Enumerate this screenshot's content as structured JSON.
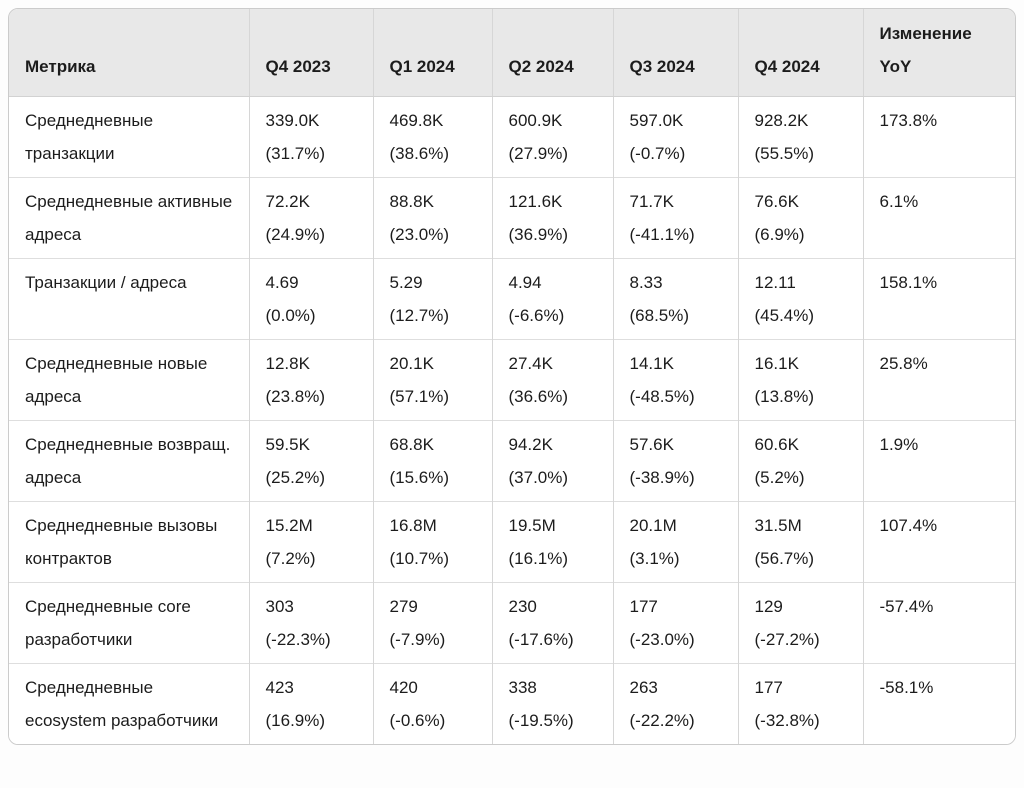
{
  "colors": {
    "header_bg": "#e8e8e8",
    "card_border": "#cbcbcb",
    "grid_line": "#dedede",
    "text": "#1c1c1c"
  },
  "table": {
    "headers": [
      "Метрика",
      "Q4 2023",
      "Q1 2024",
      "Q2 2024",
      "Q3 2024",
      "Q4 2024",
      "Изменение YoY"
    ],
    "rows": [
      {
        "metric": "Среднедневные транзакции",
        "q": [
          {
            "value": "339.0K",
            "pct": "(31.7%)"
          },
          {
            "value": "469.8K",
            "pct": "(38.6%)"
          },
          {
            "value": "600.9K",
            "pct": "(27.9%)"
          },
          {
            "value": "597.0K",
            "pct": "(-0.7%)"
          },
          {
            "value": "928.2K",
            "pct": "(55.5%)"
          }
        ],
        "yoy": "173.8%"
      },
      {
        "metric": "Среднедневные активные адреса",
        "q": [
          {
            "value": "72.2K",
            "pct": "(24.9%)"
          },
          {
            "value": "88.8K",
            "pct": "(23.0%)"
          },
          {
            "value": "121.6K",
            "pct": "(36.9%)"
          },
          {
            "value": "71.7K",
            "pct": "(-41.1%)"
          },
          {
            "value": "76.6K",
            "pct": "(6.9%)"
          }
        ],
        "yoy": "6.1%"
      },
      {
        "metric": "Транзакции / адреса",
        "q": [
          {
            "value": "4.69",
            "pct": "(0.0%)"
          },
          {
            "value": "5.29",
            "pct": "(12.7%)"
          },
          {
            "value": "4.94",
            "pct": "(-6.6%)"
          },
          {
            "value": "8.33",
            "pct": "(68.5%)"
          },
          {
            "value": "12.11",
            "pct": "(45.4%)"
          }
        ],
        "yoy": "158.1%"
      },
      {
        "metric": "Среднедневные новые адреса",
        "q": [
          {
            "value": "12.8K",
            "pct": "(23.8%)"
          },
          {
            "value": "20.1K",
            "pct": "(57.1%)"
          },
          {
            "value": "27.4K",
            "pct": "(36.6%)"
          },
          {
            "value": "14.1K",
            "pct": "(-48.5%)"
          },
          {
            "value": "16.1K",
            "pct": "(13.8%)"
          }
        ],
        "yoy": "25.8%"
      },
      {
        "metric": "Среднедневные возвращ. адреса",
        "q": [
          {
            "value": "59.5K",
            "pct": "(25.2%)"
          },
          {
            "value": "68.8K",
            "pct": "(15.6%)"
          },
          {
            "value": "94.2K",
            "pct": "(37.0%)"
          },
          {
            "value": "57.6K",
            "pct": "(-38.9%)"
          },
          {
            "value": "60.6K",
            "pct": "(5.2%)"
          }
        ],
        "yoy": "1.9%"
      },
      {
        "metric": "Среднедневные вызовы контрактов",
        "q": [
          {
            "value": "15.2M",
            "pct": "(7.2%)"
          },
          {
            "value": "16.8M",
            "pct": "(10.7%)"
          },
          {
            "value": "19.5M",
            "pct": "(16.1%)"
          },
          {
            "value": "20.1M",
            "pct": "(3.1%)"
          },
          {
            "value": "31.5M",
            "pct": "(56.7%)"
          }
        ],
        "yoy": "107.4%"
      },
      {
        "metric": "Среднедневные core разработчики",
        "q": [
          {
            "value": "303",
            "pct": "(-22.3%)"
          },
          {
            "value": "279",
            "pct": "(-7.9%)"
          },
          {
            "value": "230",
            "pct": "(-17.6%)"
          },
          {
            "value": "177",
            "pct": "(-23.0%)"
          },
          {
            "value": "129",
            "pct": "(-27.2%)"
          }
        ],
        "yoy": "-57.4%"
      },
      {
        "metric": "Среднедневные ecosystem разработчики",
        "q": [
          {
            "value": "423",
            "pct": "(16.9%)"
          },
          {
            "value": "420",
            "pct": "(-0.6%)"
          },
          {
            "value": "338",
            "pct": "(-19.5%)"
          },
          {
            "value": "263",
            "pct": "(-22.2%)"
          },
          {
            "value": "177",
            "pct": "(-32.8%)"
          }
        ],
        "yoy": "-58.1%"
      }
    ]
  },
  "chart_data": {
    "type": "table",
    "title": "",
    "columns": [
      "Метрика",
      "Q4 2023",
      "Q1 2024",
      "Q2 2024",
      "Q3 2024",
      "Q4 2024",
      "Изменение YoY"
    ],
    "rows": [
      [
        "Среднедневные транзакции",
        "339.0K (31.7%)",
        "469.8K (38.6%)",
        "600.9K (27.9%)",
        "597.0K (-0.7%)",
        "928.2K (55.5%)",
        "173.8%"
      ],
      [
        "Среднедневные активные адреса",
        "72.2K (24.9%)",
        "88.8K (23.0%)",
        "121.6K (36.9%)",
        "71.7K (-41.1%)",
        "76.6K (6.9%)",
        "6.1%"
      ],
      [
        "Транзакции / адреса",
        "4.69 (0.0%)",
        "5.29 (12.7%)",
        "4.94 (-6.6%)",
        "8.33 (68.5%)",
        "12.11 (45.4%)",
        "158.1%"
      ],
      [
        "Среднедневные новые адреса",
        "12.8K (23.8%)",
        "20.1K (57.1%)",
        "27.4K (36.6%)",
        "14.1K (-48.5%)",
        "16.1K (13.8%)",
        "25.8%"
      ],
      [
        "Среднедневные возвращ. адреса",
        "59.5K (25.2%)",
        "68.8K (15.6%)",
        "94.2K (37.0%)",
        "57.6K (-38.9%)",
        "60.6K (5.2%)",
        "1.9%"
      ],
      [
        "Среднедневные вызовы контрактов",
        "15.2M (7.2%)",
        "16.8M (10.7%)",
        "19.5M (16.1%)",
        "20.1M (3.1%)",
        "31.5M (56.7%)",
        "107.4%"
      ],
      [
        "Среднедневные core разработчики",
        "303 (-22.3%)",
        "279 (-7.9%)",
        "230 (-17.6%)",
        "177 (-23.0%)",
        "129 (-27.2%)",
        "-57.4%"
      ],
      [
        "Среднедневные ecosystem разработчики",
        "423 (16.9%)",
        "420 (-0.6%)",
        "338 (-19.5%)",
        "263 (-22.2%)",
        "177 (-32.8%)",
        "-58.1%"
      ]
    ]
  }
}
